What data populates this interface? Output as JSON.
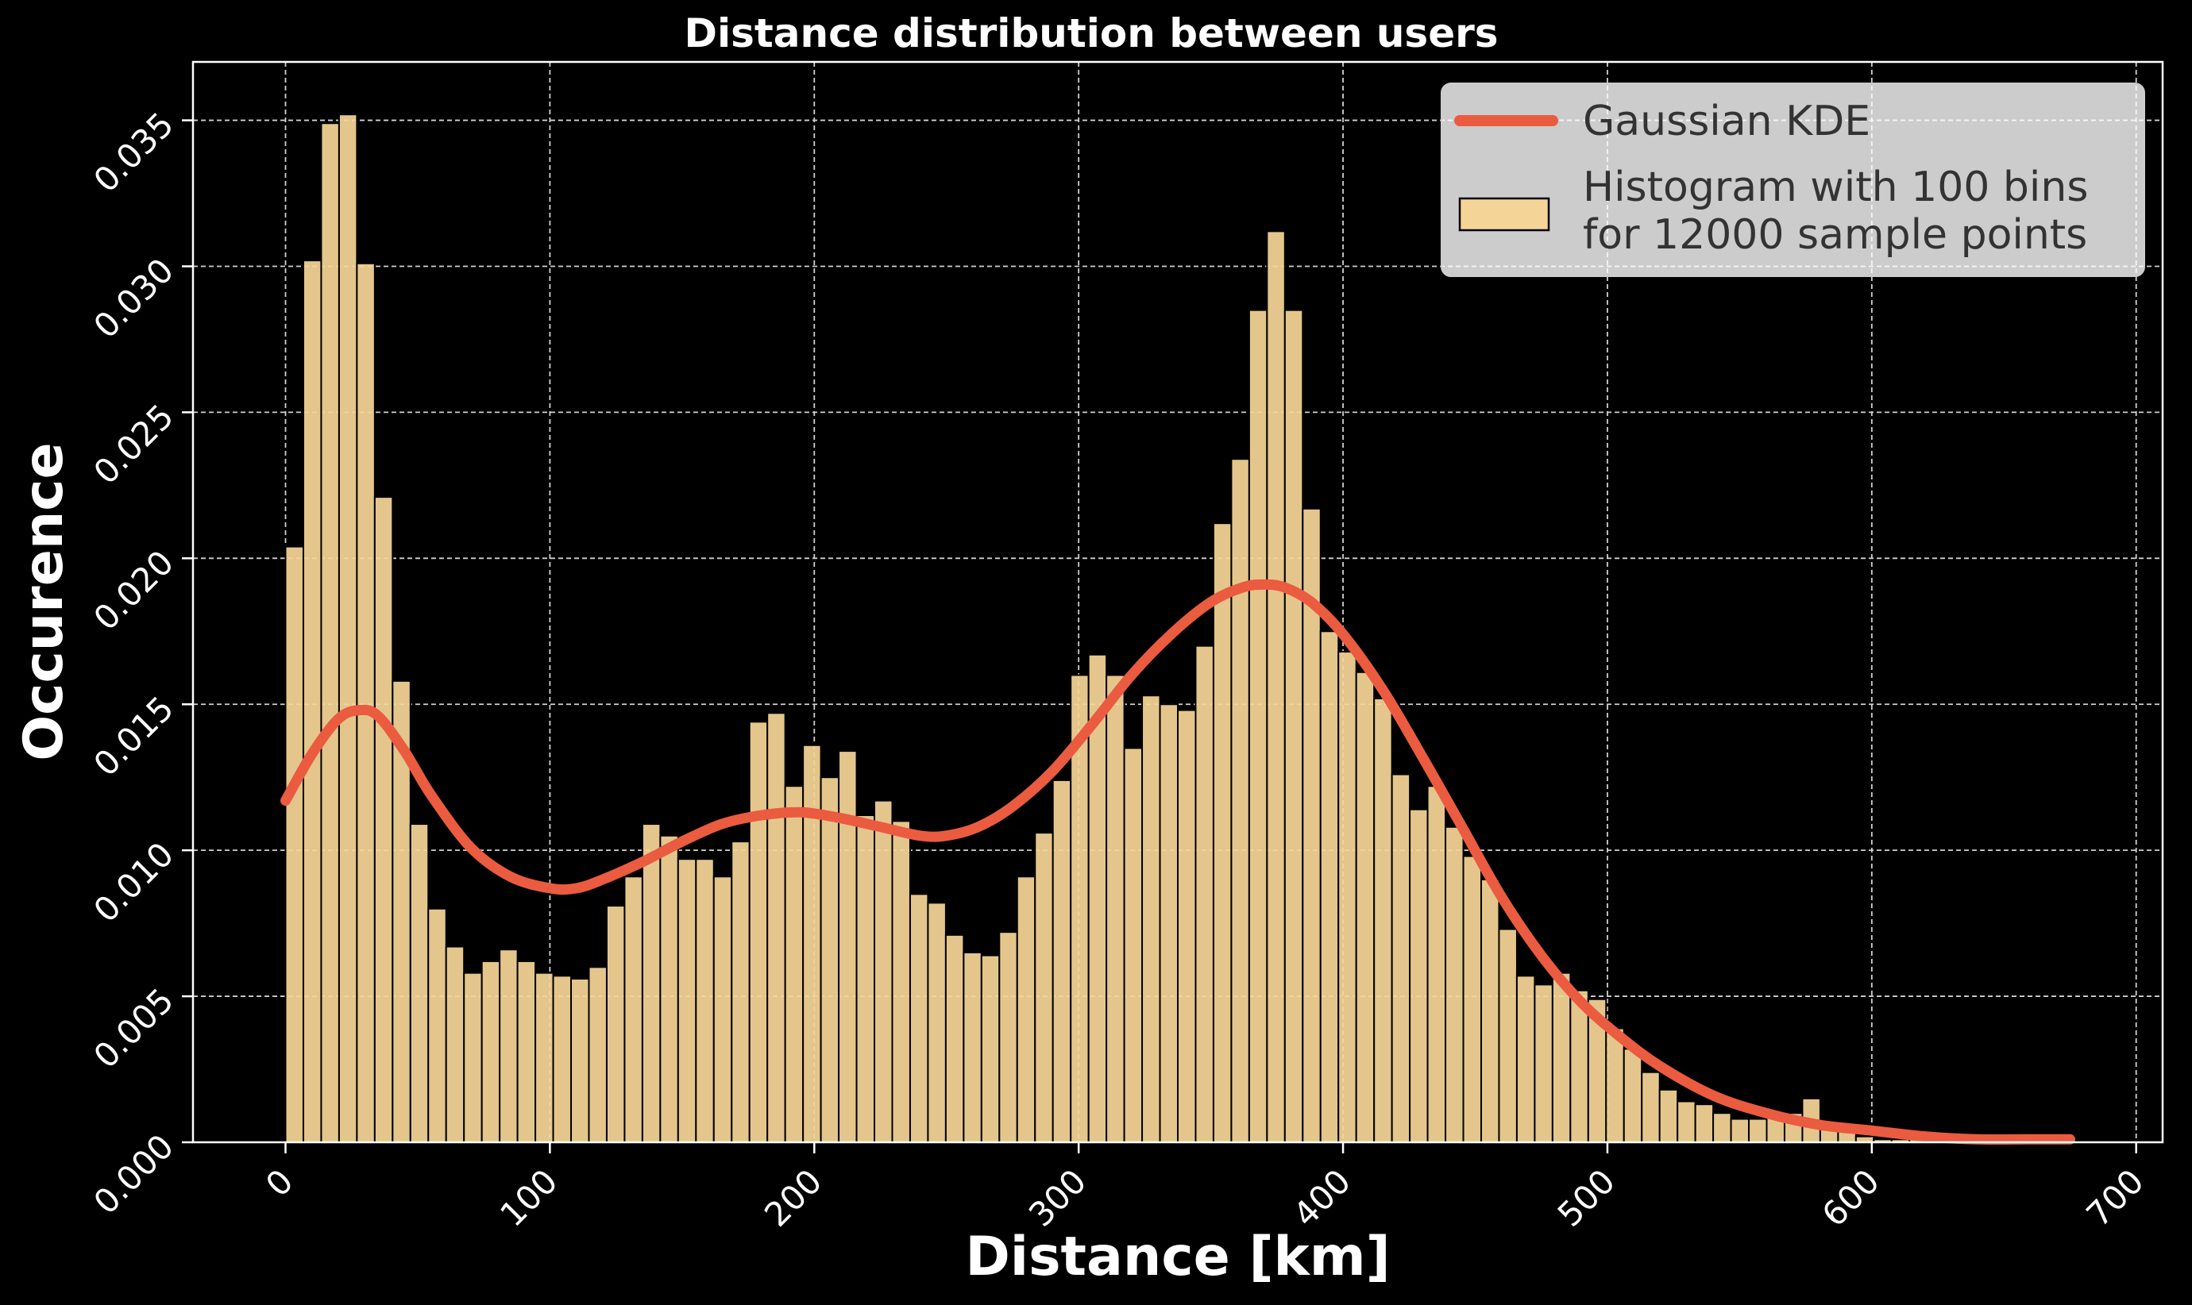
{
  "chart_data": {
    "type": "bar",
    "title": "Distance distribution between users",
    "xlabel": "Distance [km]",
    "ylabel": "Occurence",
    "xlim": [
      -35,
      710
    ],
    "ylim": [
      0,
      0.037
    ],
    "x_ticks": [
      "0",
      "100",
      "200",
      "300",
      "400",
      "500",
      "600",
      "700"
    ],
    "y_ticks": [
      "0.000",
      "0.005",
      "0.010",
      "0.015",
      "0.020",
      "0.025",
      "0.030",
      "0.035"
    ],
    "grid": true,
    "legend_position": "top-right",
    "bin_start": 0,
    "bin_width": 6.75,
    "histogram": {
      "legend_label_line1": "Histogram with 100 bins",
      "legend_label_line2": "for 12000 sample points",
      "color": "#f5d597",
      "values": [
        0.0204,
        0.0302,
        0.0349,
        0.0352,
        0.0301,
        0.0221,
        0.0158,
        0.0109,
        0.008,
        0.0067,
        0.0058,
        0.0062,
        0.0066,
        0.0062,
        0.0058,
        0.0057,
        0.0056,
        0.006,
        0.0081,
        0.0091,
        0.0109,
        0.0105,
        0.0097,
        0.0097,
        0.0091,
        0.0103,
        0.0144,
        0.0147,
        0.0122,
        0.0136,
        0.0125,
        0.0134,
        0.0112,
        0.0117,
        0.011,
        0.0085,
        0.0082,
        0.0071,
        0.0065,
        0.0064,
        0.0072,
        0.0091,
        0.0106,
        0.0124,
        0.016,
        0.0167,
        0.016,
        0.0135,
        0.0153,
        0.015,
        0.0148,
        0.017,
        0.0212,
        0.0234,
        0.0285,
        0.0312,
        0.0285,
        0.0217,
        0.0175,
        0.0168,
        0.0161,
        0.0152,
        0.0126,
        0.0114,
        0.0122,
        0.0108,
        0.0098,
        0.009,
        0.0073,
        0.0057,
        0.0054,
        0.0058,
        0.0052,
        0.0049,
        0.0039,
        0.0032,
        0.0024,
        0.0018,
        0.0014,
        0.0013,
        0.001,
        0.0008,
        0.0008,
        0.0009,
        0.001,
        0.0015,
        0.0006,
        0.0005,
        0.0002,
        0.0001,
        0.0001,
        0.0001,
        0.0,
        0.0,
        0.0,
        0.0,
        0.0,
        0.0,
        0.0,
        0.0
      ]
    },
    "kde": {
      "legend_label": "Gaussian KDE",
      "color": "#ea5b40",
      "x": [
        0,
        10,
        20,
        28,
        35,
        45,
        55,
        70,
        85,
        100,
        110,
        120,
        135,
        150,
        165,
        180,
        195,
        210,
        225,
        240,
        250,
        262,
        275,
        290,
        305,
        320,
        335,
        350,
        362,
        370,
        378,
        388,
        400,
        415,
        430,
        445,
        460,
        475,
        490,
        505,
        520,
        540,
        560,
        580,
        600,
        620,
        640,
        660,
        675
      ],
      "y": [
        0.0117,
        0.0133,
        0.0145,
        0.0148,
        0.0146,
        0.0134,
        0.0119,
        0.0101,
        0.0091,
        0.0087,
        0.0087,
        0.009,
        0.0096,
        0.0103,
        0.0109,
        0.0112,
        0.0113,
        0.0111,
        0.0108,
        0.0105,
        0.0105,
        0.0108,
        0.0115,
        0.0127,
        0.0143,
        0.016,
        0.0174,
        0.0185,
        0.019,
        0.0191,
        0.019,
        0.0185,
        0.0174,
        0.0155,
        0.0132,
        0.0108,
        0.0084,
        0.0064,
        0.0048,
        0.0036,
        0.0026,
        0.0016,
        0.001,
        0.0006,
        0.0004,
        0.0002,
        0.0001,
        0.0001,
        0.0001
      ]
    }
  }
}
